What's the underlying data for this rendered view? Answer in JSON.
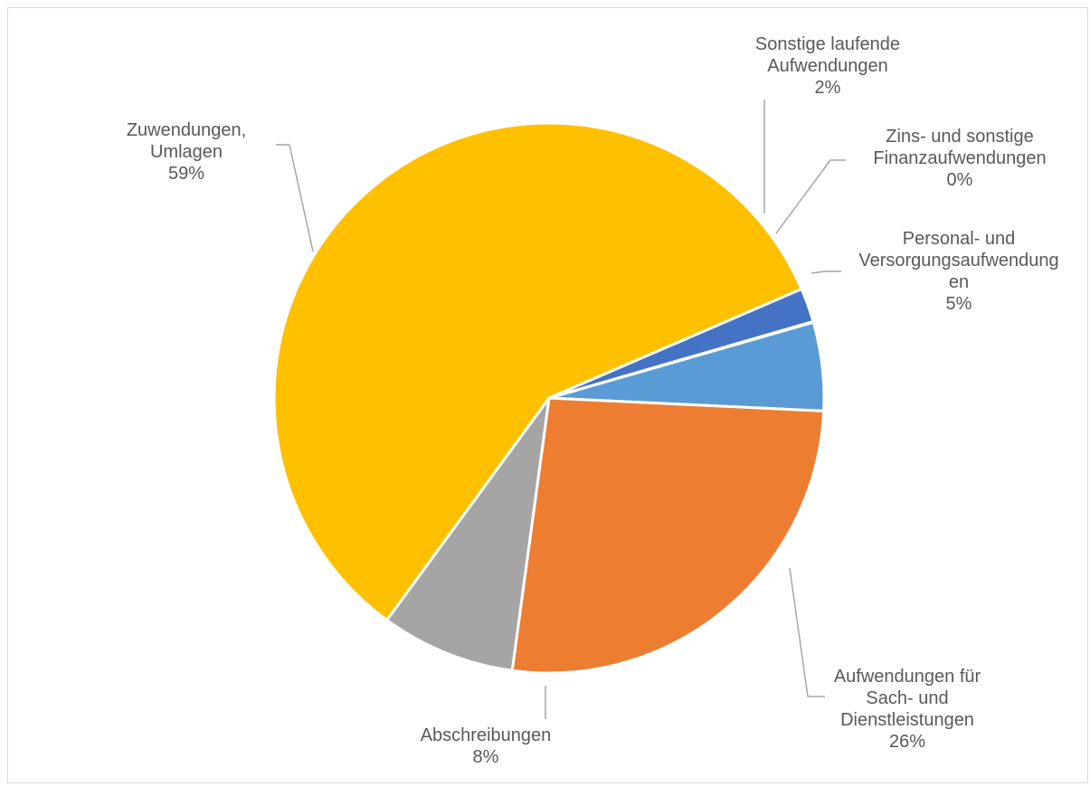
{
  "chart_data": {
    "type": "pie",
    "title": "",
    "slices": [
      {
        "name": "Personal- und Versorgungsaufwendungen",
        "value": 5.2,
        "label_lines": [
          "Personal- und",
          "Versorgungsaufwendung",
          "en"
        ],
        "percent_label": "5%",
        "color": "#5b9bd5"
      },
      {
        "name": "Aufwendungen für Sach- und Dienstleistungen",
        "value": 26.4,
        "label_lines": [
          "Aufwendungen für",
          "Sach- und",
          "Dienstleistungen"
        ],
        "percent_label": "26%",
        "color": "#ed7d31"
      },
      {
        "name": "Abschreibungen",
        "value": 7.9,
        "label_lines": [
          "Abschreibungen"
        ],
        "percent_label": "8%",
        "color": "#a5a5a5"
      },
      {
        "name": "Zuwendungen, Umlagen",
        "value": 58.5,
        "label_lines": [
          "Zuwendungen,",
          "Umlagen"
        ],
        "percent_label": "59%",
        "color": "#ffc000"
      },
      {
        "name": "Sonstige laufende Aufwendungen",
        "value": 2.0,
        "label_lines": [
          "Sonstige laufende",
          "Aufwendungen"
        ],
        "percent_label": "2%",
        "color": "#4472c4"
      },
      {
        "name": "Zins- und sonstige Finanzaufwendungen",
        "value": 0.04,
        "label_lines": [
          "Zins- und sonstige",
          "Finanzaufwendungen"
        ],
        "percent_label": "0%",
        "color": "#70ad47"
      }
    ]
  }
}
